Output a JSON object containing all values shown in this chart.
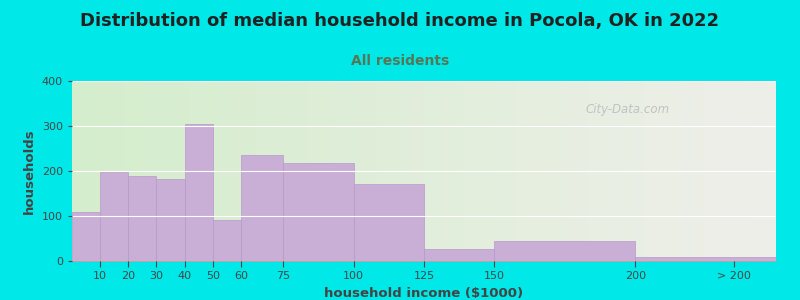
{
  "title": "Distribution of median household income in Pocola, OK in 2022",
  "subtitle": "All residents",
  "xlabel": "household income ($1000)",
  "ylabel": "households",
  "bar_labels": [
    "10",
    "20",
    "30",
    "40",
    "50",
    "60",
    "75",
    "100",
    "125",
    "150",
    "200",
    "> 200"
  ],
  "bar_heights": [
    110,
    197,
    188,
    183,
    305,
    91,
    236,
    217,
    172,
    26,
    44,
    10
  ],
  "bar_color": "#c9aed6",
  "bar_edgecolor": "#b898cc",
  "background_outer": "#00e8e8",
  "background_inner_left": "#d4edcc",
  "background_inner_right": "#efefea",
  "ylim": [
    0,
    400
  ],
  "yticks": [
    0,
    100,
    200,
    300,
    400
  ],
  "title_fontsize": 13,
  "subtitle_fontsize": 10,
  "axis_label_fontsize": 9.5,
  "watermark_text": "City-Data.com",
  "bar_left_edges": [
    0,
    10,
    20,
    30,
    40,
    50,
    60,
    75,
    100,
    125,
    150,
    200
  ],
  "bar_widths": [
    10,
    10,
    10,
    10,
    10,
    10,
    15,
    25,
    25,
    25,
    50,
    50
  ],
  "xlim": [
    0,
    250
  ],
  "xtick_positions": [
    10,
    20,
    30,
    40,
    50,
    60,
    75,
    100,
    125,
    150,
    200,
    235
  ]
}
